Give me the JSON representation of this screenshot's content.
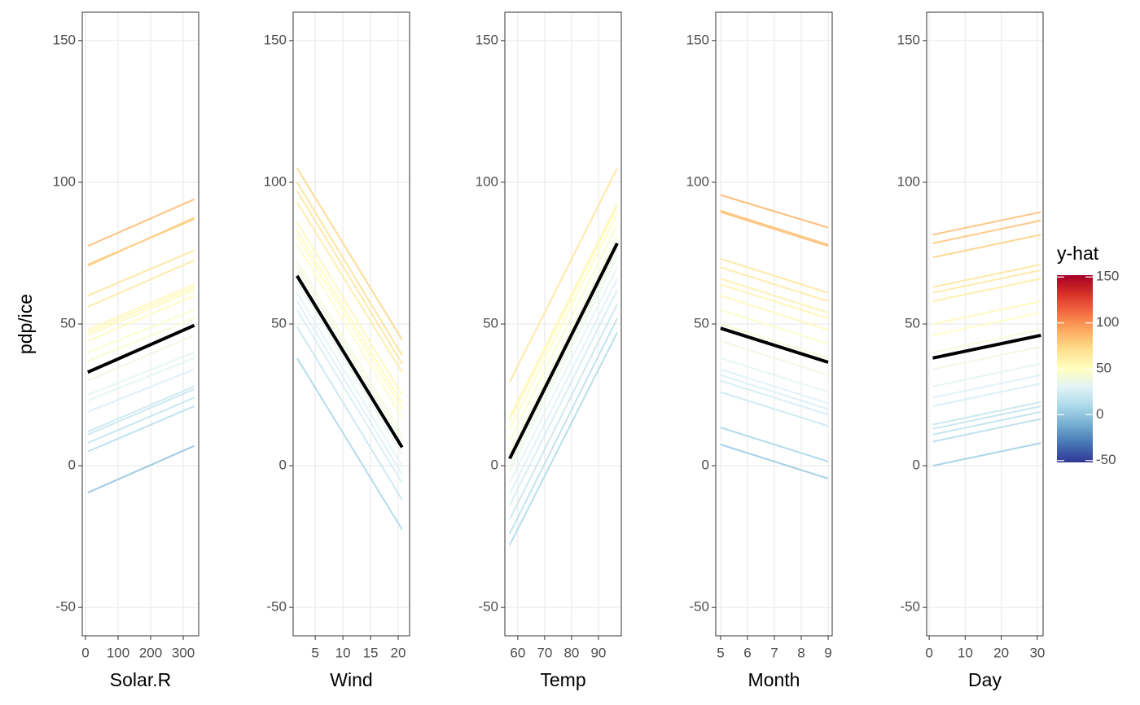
{
  "chart_data": [
    {
      "type": "line",
      "xlabel": "Solar.R",
      "ylabel": "pdp/ice",
      "xlim": [
        -10,
        347.5
      ],
      "xticks": [
        0,
        100,
        200,
        300
      ],
      "ylim": [
        -60,
        160
      ],
      "yticks": [
        -50,
        0,
        50,
        100,
        150
      ],
      "grid": true,
      "x": [
        7,
        334
      ],
      "series": [
        {
          "values": [
            77.5,
            94
          ]
        },
        {
          "values": [
            71,
            87
          ]
        },
        {
          "values": [
            70.5,
            87.5
          ]
        },
        {
          "values": [
            60,
            76
          ]
        },
        {
          "values": [
            56,
            72.5
          ]
        },
        {
          "values": [
            48,
            64
          ]
        },
        {
          "values": [
            47,
            63
          ]
        },
        {
          "values": [
            46,
            62
          ]
        },
        {
          "values": [
            44,
            60
          ]
        },
        {
          "values": [
            40,
            55
          ]
        },
        {
          "values": [
            37,
            52
          ]
        },
        {
          "values": [
            30,
            46
          ]
        },
        {
          "values": [
            25,
            40
          ]
        },
        {
          "values": [
            23,
            38
          ]
        },
        {
          "values": [
            19,
            34
          ]
        },
        {
          "values": [
            12,
            28
          ]
        },
        {
          "values": [
            11,
            27
          ]
        },
        {
          "values": [
            8,
            24
          ]
        },
        {
          "values": [
            5,
            21
          ]
        },
        {
          "values": [
            -9.5,
            7
          ]
        },
        {
          "color": "#000000",
          "values": [
            33,
            49.5
          ]
        }
      ]
    },
    {
      "type": "line",
      "xlabel": "Wind",
      "xlim": [
        1,
        22.06
      ],
      "xticks": [
        5,
        10,
        15,
        20
      ],
      "ylim": [
        -60,
        160
      ],
      "yticks": [
        -50,
        0,
        50,
        100,
        150
      ],
      "grid": true,
      "x": [
        1.7,
        20.7
      ],
      "series": [
        {
          "values": [
            105,
            44.5
          ]
        },
        {
          "values": [
            100,
            39
          ]
        },
        {
          "values": [
            97,
            36
          ]
        },
        {
          "values": [
            93,
            33
          ]
        },
        {
          "values": [
            86,
            25
          ]
        },
        {
          "values": [
            83,
            22
          ]
        },
        {
          "values": [
            81,
            20
          ]
        },
        {
          "values": [
            78,
            17
          ]
        },
        {
          "values": [
            72,
            11
          ]
        },
        {
          "values": [
            70,
            9
          ]
        },
        {
          "values": [
            65,
            4
          ]
        },
        {
          "values": [
            61,
            0
          ]
        },
        {
          "values": [
            58,
            -3
          ]
        },
        {
          "values": [
            55,
            -6
          ]
        },
        {
          "values": [
            49,
            -12
          ]
        },
        {
          "values": [
            38,
            -22.5
          ]
        },
        {
          "color": "#000000",
          "values": [
            67,
            6.5
          ]
        }
      ]
    },
    {
      "type": "line",
      "xlabel": "Temp",
      "xlim": [
        55.2,
        98.5
      ],
      "xticks": [
        60,
        70,
        80,
        90
      ],
      "ylim": [
        -60,
        160
      ],
      "yticks": [
        -50,
        0,
        50,
        100,
        150
      ],
      "grid": true,
      "x": [
        57,
        97
      ],
      "series": [
        {
          "values": [
            29.5,
            105
          ]
        },
        {
          "values": [
            17,
            92.5
          ]
        },
        {
          "values": [
            16,
            91.5
          ]
        },
        {
          "values": [
            13,
            89
          ]
        },
        {
          "values": [
            9,
            85
          ]
        },
        {
          "values": [
            5,
            81
          ]
        },
        {
          "values": [
            0,
            76
          ]
        },
        {
          "values": [
            -2,
            74
          ]
        },
        {
          "values": [
            -6,
            70
          ]
        },
        {
          "values": [
            -10,
            66
          ]
        },
        {
          "values": [
            -14,
            62
          ]
        },
        {
          "values": [
            -19,
            57
          ]
        },
        {
          "values": [
            -24,
            52
          ]
        },
        {
          "values": [
            -28,
            47
          ]
        },
        {
          "color": "#000000",
          "values": [
            2.5,
            78.5
          ]
        }
      ]
    },
    {
      "type": "line",
      "xlabel": "Month",
      "xlim": [
        4.82,
        9.15
      ],
      "xticks": [
        5,
        6,
        7,
        8,
        9
      ],
      "ylim": [
        -60,
        160
      ],
      "yticks": [
        -50,
        0,
        50,
        100,
        150
      ],
      "grid": true,
      "x": [
        5,
        9
      ],
      "series": [
        {
          "values": [
            95.5,
            84
          ]
        },
        {
          "values": [
            90,
            78
          ]
        },
        {
          "values": [
            89.5,
            77.5
          ]
        },
        {
          "values": [
            73,
            61
          ]
        },
        {
          "values": [
            70,
            58
          ]
        },
        {
          "values": [
            66,
            54
          ]
        },
        {
          "values": [
            64,
            52
          ]
        },
        {
          "values": [
            60,
            48
          ]
        },
        {
          "values": [
            55,
            43
          ]
        },
        {
          "values": [
            50,
            38
          ]
        },
        {
          "values": [
            44,
            32
          ]
        },
        {
          "values": [
            38,
            26
          ]
        },
        {
          "values": [
            34,
            22
          ]
        },
        {
          "values": [
            32,
            20
          ]
        },
        {
          "values": [
            30,
            18
          ]
        },
        {
          "values": [
            26,
            14
          ]
        },
        {
          "values": [
            13.5,
            1.5
          ]
        },
        {
          "values": [
            7.5,
            -4.5
          ]
        },
        {
          "color": "#000000",
          "values": [
            48.5,
            36.5
          ]
        }
      ]
    },
    {
      "type": "line",
      "xlabel": "Day",
      "xlim": [
        -0.7,
        31.6
      ],
      "xticks": [
        0,
        10,
        20,
        30
      ],
      "ylim": [
        -60,
        160
      ],
      "yticks": [
        -50,
        0,
        50,
        100,
        150
      ],
      "grid": true,
      "x": [
        1,
        31
      ],
      "series": [
        {
          "values": [
            81.5,
            89.5
          ]
        },
        {
          "values": [
            78.5,
            86.5
          ]
        },
        {
          "values": [
            73.5,
            81.5
          ]
        },
        {
          "values": [
            63,
            71
          ]
        },
        {
          "values": [
            61,
            69
          ]
        },
        {
          "values": [
            58,
            66
          ]
        },
        {
          "values": [
            50,
            58
          ]
        },
        {
          "values": [
            46,
            54
          ]
        },
        {
          "values": [
            40,
            48
          ]
        },
        {
          "values": [
            34,
            42
          ]
        },
        {
          "values": [
            28,
            36
          ]
        },
        {
          "values": [
            24,
            32
          ]
        },
        {
          "values": [
            21,
            29
          ]
        },
        {
          "values": [
            14.5,
            22.5
          ]
        },
        {
          "values": [
            13,
            21
          ]
        },
        {
          "values": [
            11,
            19
          ]
        },
        {
          "values": [
            8.5,
            16.5
          ]
        },
        {
          "values": [
            0,
            8
          ]
        },
        {
          "color": "#000000",
          "values": [
            38,
            46
          ]
        }
      ]
    }
  ],
  "colorbar": {
    "title": "y-hat",
    "lim": [
      -52,
      152
    ],
    "ticks": [
      -50,
      0,
      50,
      100,
      150
    ],
    "colors": [
      "#313695",
      "#4575b4",
      "#74add1",
      "#abd9e9",
      "#e0f3f8",
      "#ffffbf",
      "#fee090",
      "#fdae61",
      "#f46d43",
      "#d73027",
      "#a50026"
    ]
  }
}
